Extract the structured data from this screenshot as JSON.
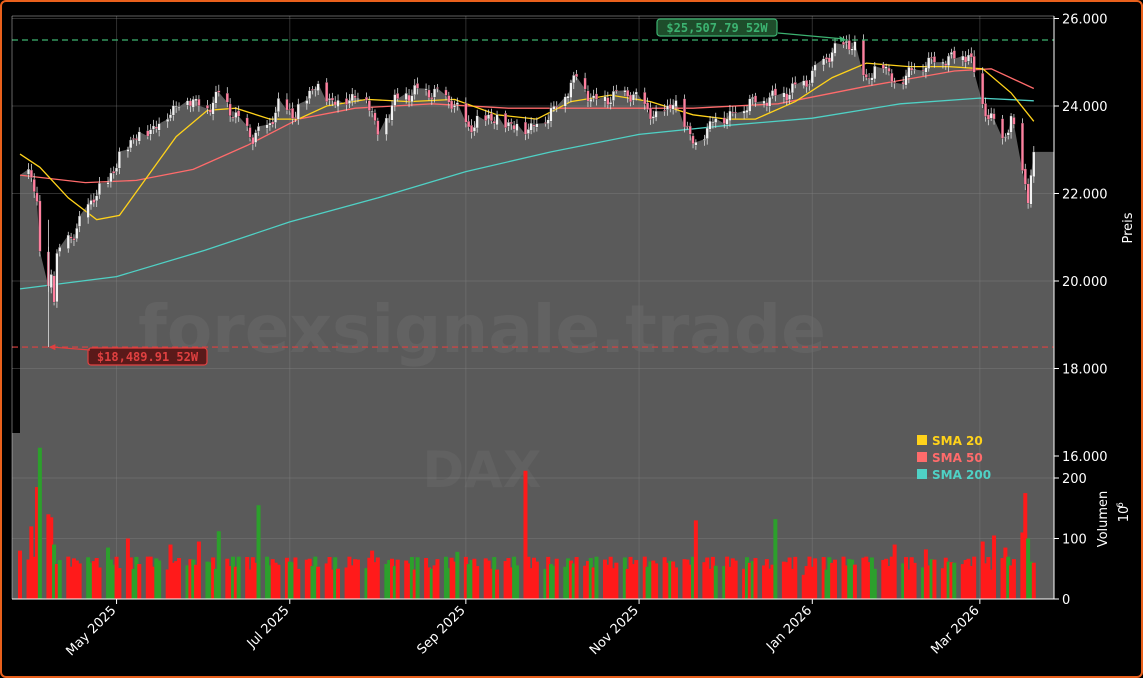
{
  "chart_data": {
    "type": "candlestick",
    "symbol": "DAX",
    "watermark": "forexsignale.trade",
    "colors": {
      "background": "#000000",
      "panel": "#5a5a5a",
      "up": "#2ca02c",
      "down": "#ff1a1a",
      "sma20": "#ffd21a",
      "sma50": "#ff6b6b",
      "sma200": "#4fd1c5",
      "high_line": "#3cb371",
      "low_line": "#e04040",
      "frame": "#e8601c"
    },
    "price_axis": {
      "label": "Preis",
      "ticks": [
        "16.000",
        "18.000",
        "20.000",
        "22.000",
        "24.000",
        "26.000"
      ],
      "ylim": [
        16000,
        26000
      ]
    },
    "volume_axis": {
      "label": "Volumen",
      "exponent": "10",
      "exponent_power": "6",
      "ticks": [
        "0",
        "100",
        "200"
      ],
      "ylim": [
        0,
        260
      ]
    },
    "x_axis": {
      "start": "2025-03-28",
      "end": "2026-03-20",
      "ticks": [
        {
          "label": "May 2025",
          "date": "2025-05-01"
        },
        {
          "label": "Jul 2025",
          "date": "2025-07-01"
        },
        {
          "label": "Sep 2025",
          "date": "2025-09-01"
        },
        {
          "label": "Nov 2025",
          "date": "2025-11-01"
        },
        {
          "label": "Jan 2026",
          "date": "2026-01-01"
        },
        {
          "label": "Mar 2026",
          "date": "2026-03-01"
        }
      ]
    },
    "high_52w": {
      "label": "$25,507.79 52W",
      "value": 25507.79,
      "date": "2026-01-13"
    },
    "low_52w": {
      "label": "$18,489.91 52W",
      "value": 18489.91,
      "date": "2025-04-07"
    },
    "legend": [
      {
        "name": "SMA 20",
        "color": "#ffd21a"
      },
      {
        "name": "SMA 50",
        "color": "#ff6b6b"
      },
      {
        "name": "SMA 200",
        "color": "#4fd1c5"
      }
    ],
    "close_series": [
      [
        "2025-03-28",
        22460
      ],
      [
        "2025-04-01",
        22540
      ],
      [
        "2025-04-03",
        21710
      ],
      [
        "2025-04-04",
        20640
      ],
      [
        "2025-04-07",
        19790
      ],
      [
        "2025-04-08",
        20280
      ],
      [
        "2025-04-09",
        19670
      ],
      [
        "2025-04-10",
        20560
      ],
      [
        "2025-04-14",
        20950
      ],
      [
        "2025-04-17",
        21200
      ],
      [
        "2025-04-23",
        21950
      ],
      [
        "2025-04-28",
        22270
      ],
      [
        "2025-05-02",
        22850
      ],
      [
        "2025-05-08",
        23350
      ],
      [
        "2025-05-14",
        23500
      ],
      [
        "2025-05-20",
        23900
      ],
      [
        "2025-05-26",
        24200
      ],
      [
        "2025-06-02",
        23950
      ],
      [
        "2025-06-06",
        24300
      ],
      [
        "2025-06-12",
        23750
      ],
      [
        "2025-06-18",
        23300
      ],
      [
        "2025-06-23",
        23500
      ],
      [
        "2025-06-27",
        24000
      ],
      [
        "2025-07-03",
        23800
      ],
      [
        "2025-07-10",
        24500
      ],
      [
        "2025-07-16",
        24100
      ],
      [
        "2025-07-22",
        24200
      ],
      [
        "2025-07-28",
        24250
      ],
      [
        "2025-08-01",
        23400
      ],
      [
        "2025-08-07",
        24150
      ],
      [
        "2025-08-14",
        24350
      ],
      [
        "2025-08-21",
        24300
      ],
      [
        "2025-08-27",
        24100
      ],
      [
        "2025-09-02",
        23500
      ],
      [
        "2025-09-09",
        23750
      ],
      [
        "2025-09-16",
        23600
      ],
      [
        "2025-09-23",
        23500
      ],
      [
        "2025-09-30",
        23800
      ],
      [
        "2025-10-06",
        24300
      ],
      [
        "2025-10-10",
        24700
      ],
      [
        "2025-10-16",
        24100
      ],
      [
        "2025-10-22",
        24200
      ],
      [
        "2025-10-28",
        24300
      ],
      [
        "2025-11-03",
        24000
      ],
      [
        "2025-11-07",
        23700
      ],
      [
        "2025-11-13",
        24100
      ],
      [
        "2025-11-18",
        23500
      ],
      [
        "2025-11-21",
        23100
      ],
      [
        "2025-11-27",
        23700
      ],
      [
        "2025-12-03",
        23800
      ],
      [
        "2025-12-10",
        24100
      ],
      [
        "2025-12-17",
        24200
      ],
      [
        "2025-12-23",
        24300
      ],
      [
        "2025-12-30",
        24550
      ],
      [
        "2026-01-06",
        25100
      ],
      [
        "2026-01-13",
        25450
      ],
      [
        "2026-01-16",
        25300
      ],
      [
        "2026-01-20",
        24600
      ],
      [
        "2026-01-26",
        25000
      ],
      [
        "2026-01-30",
        24500
      ],
      [
        "2026-02-04",
        24800
      ],
      [
        "2026-02-10",
        25000
      ],
      [
        "2026-02-16",
        25100
      ],
      [
        "2026-02-20",
        25100
      ],
      [
        "2026-02-25",
        25200
      ],
      [
        "2026-03-02",
        24000
      ],
      [
        "2026-03-05",
        23700
      ],
      [
        "2026-03-09",
        23200
      ],
      [
        "2026-03-12",
        23700
      ],
      [
        "2026-03-16",
        22500
      ],
      [
        "2026-03-18",
        21900
      ],
      [
        "2026-03-20",
        22950
      ]
    ],
    "sma20": [
      [
        "2025-03-28",
        22900
      ],
      [
        "2025-04-04",
        22600
      ],
      [
        "2025-04-14",
        21900
      ],
      [
        "2025-04-24",
        21400
      ],
      [
        "2025-05-02",
        21500
      ],
      [
        "2025-05-12",
        22400
      ],
      [
        "2025-05-22",
        23300
      ],
      [
        "2025-06-02",
        23900
      ],
      [
        "2025-06-12",
        23950
      ],
      [
        "2025-06-24",
        23700
      ],
      [
        "2025-07-04",
        23700
      ],
      [
        "2025-07-14",
        24000
      ],
      [
        "2025-07-28",
        24150
      ],
      [
        "2025-08-12",
        24100
      ],
      [
        "2025-08-28",
        24150
      ],
      [
        "2025-09-12",
        23800
      ],
      [
        "2025-09-26",
        23700
      ],
      [
        "2025-10-08",
        24100
      ],
      [
        "2025-10-22",
        24250
      ],
      [
        "2025-11-05",
        24100
      ],
      [
        "2025-11-20",
        23800
      ],
      [
        "2025-12-02",
        23700
      ],
      [
        "2025-12-12",
        23700
      ],
      [
        "2025-12-26",
        24100
      ],
      [
        "2026-01-08",
        24650
      ],
      [
        "2026-01-20",
        24980
      ],
      [
        "2026-02-04",
        24900
      ],
      [
        "2026-02-18",
        24900
      ],
      [
        "2026-03-02",
        24850
      ],
      [
        "2026-03-12",
        24300
      ],
      [
        "2026-03-20",
        23650
      ]
    ],
    "sma50": [
      [
        "2025-03-28",
        22420
      ],
      [
        "2025-04-20",
        22250
      ],
      [
        "2025-05-08",
        22300
      ],
      [
        "2025-05-28",
        22550
      ],
      [
        "2025-06-16",
        23100
      ],
      [
        "2025-07-04",
        23700
      ],
      [
        "2025-07-24",
        23950
      ],
      [
        "2025-08-20",
        24050
      ],
      [
        "2025-09-16",
        23950
      ],
      [
        "2025-10-20",
        23950
      ],
      [
        "2025-11-20",
        23950
      ],
      [
        "2025-12-20",
        24050
      ],
      [
        "2026-01-20",
        24450
      ],
      [
        "2026-02-20",
        24800
      ],
      [
        "2026-03-05",
        24850
      ],
      [
        "2026-03-20",
        24400
      ]
    ],
    "sma200": [
      [
        "2025-03-28",
        19820
      ],
      [
        "2025-05-01",
        20100
      ],
      [
        "2025-06-01",
        20700
      ],
      [
        "2025-07-01",
        21350
      ],
      [
        "2025-08-01",
        21900
      ],
      [
        "2025-09-01",
        22500
      ],
      [
        "2025-10-01",
        22950
      ],
      [
        "2025-11-01",
        23350
      ],
      [
        "2025-12-01",
        23550
      ],
      [
        "2026-01-01",
        23720
      ],
      [
        "2026-02-01",
        24050
      ],
      [
        "2026-03-01",
        24180
      ],
      [
        "2026-03-20",
        24120
      ]
    ],
    "volume_millions": [
      [
        "2025-03-28",
        80,
        "down"
      ],
      [
        "2025-04-01",
        120,
        "down"
      ],
      [
        "2025-04-03",
        185,
        "down"
      ],
      [
        "2025-04-04",
        250,
        "up"
      ],
      [
        "2025-04-07",
        140,
        "down"
      ],
      [
        "2025-04-08",
        135,
        "down"
      ],
      [
        "2025-04-09",
        90,
        "up"
      ],
      [
        "2025-04-14",
        70,
        "down"
      ],
      [
        "2025-04-22",
        60,
        "up"
      ],
      [
        "2025-04-28",
        85,
        "up"
      ],
      [
        "2025-05-05",
        100,
        "down"
      ],
      [
        "2025-05-12",
        70,
        "down"
      ],
      [
        "2025-05-20",
        90,
        "down"
      ],
      [
        "2025-05-30",
        95,
        "down"
      ],
      [
        "2025-06-06",
        112,
        "up"
      ],
      [
        "2025-06-13",
        70,
        "up"
      ],
      [
        "2025-06-20",
        155,
        "up"
      ],
      [
        "2025-06-26",
        60,
        "down"
      ],
      [
        "2025-07-07",
        65,
        "down"
      ],
      [
        "2025-07-18",
        50,
        "down"
      ],
      [
        "2025-07-30",
        80,
        "down"
      ],
      [
        "2025-08-08",
        65,
        "down"
      ],
      [
        "2025-08-20",
        50,
        "up"
      ],
      [
        "2025-08-29",
        78,
        "up"
      ],
      [
        "2025-09-10",
        50,
        "down"
      ],
      [
        "2025-09-22",
        212,
        "down"
      ],
      [
        "2025-10-02",
        55,
        "up"
      ],
      [
        "2025-10-13",
        55,
        "down"
      ],
      [
        "2025-10-24",
        60,
        "down"
      ],
      [
        "2025-11-05",
        62,
        "up"
      ],
      [
        "2025-11-13",
        62,
        "down"
      ],
      [
        "2025-11-21",
        130,
        "down"
      ],
      [
        "2025-11-28",
        55,
        "up"
      ],
      [
        "2025-12-08",
        50,
        "down"
      ],
      [
        "2025-12-17",
        50,
        "down"
      ],
      [
        "2025-12-19",
        132,
        "up"
      ],
      [
        "2025-12-29",
        40,
        "down"
      ],
      [
        "2026-01-09",
        65,
        "down"
      ],
      [
        "2026-01-20",
        70,
        "down"
      ],
      [
        "2026-01-30",
        90,
        "down"
      ],
      [
        "2026-02-10",
        82,
        "down"
      ],
      [
        "2026-02-20",
        60,
        "up"
      ],
      [
        "2026-03-02",
        95,
        "down"
      ],
      [
        "2026-03-06",
        105,
        "down"
      ],
      [
        "2026-03-10",
        85,
        "down"
      ],
      [
        "2026-03-16",
        110,
        "down"
      ],
      [
        "2026-03-17",
        175,
        "down"
      ],
      [
        "2026-03-18",
        100,
        "up"
      ],
      [
        "2026-03-20",
        60,
        "down"
      ]
    ]
  }
}
